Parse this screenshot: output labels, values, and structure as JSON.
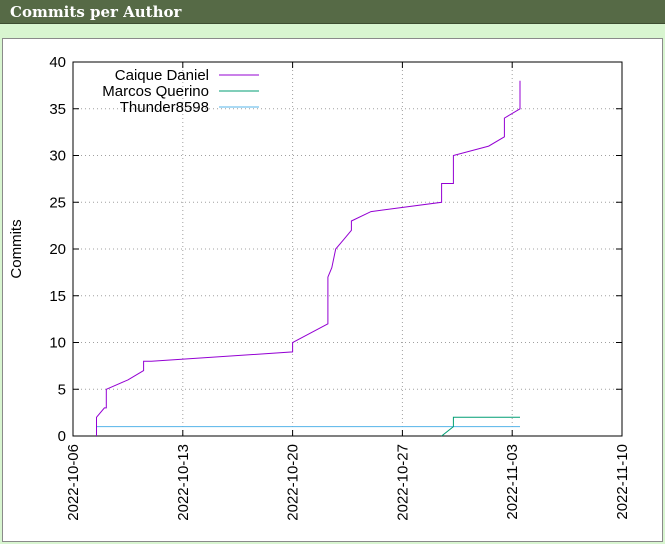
{
  "header": {
    "title": "Commits per Author"
  },
  "chart_data": {
    "type": "line",
    "xlabel": "",
    "ylabel": "Commits",
    "ylim": [
      0,
      40
    ],
    "yticks": [
      0,
      5,
      10,
      15,
      20,
      25,
      30,
      35,
      40
    ],
    "xlim": [
      "2022-10-06",
      "2022-11-10"
    ],
    "xticks": [
      "2022-10-06",
      "2022-10-13",
      "2022-10-20",
      "2022-10-27",
      "2022-11-03",
      "2022-11-10"
    ],
    "grid": "dotted-horizontal-and-vertical",
    "legend": "top-left",
    "series": [
      {
        "name": "Caique Daniel",
        "color": "#9400d3",
        "points": [
          [
            "2022-10-07 12:00",
            0
          ],
          [
            "2022-10-07 12:00",
            2
          ],
          [
            "2022-10-08 00:00",
            3
          ],
          [
            "2022-10-08 03:00",
            3
          ],
          [
            "2022-10-08 03:00",
            5
          ],
          [
            "2022-10-09 12:00",
            6
          ],
          [
            "2022-10-10 12:00",
            7
          ],
          [
            "2022-10-10 12:00",
            8
          ],
          [
            "2022-10-11 00:00",
            8
          ],
          [
            "2022-10-20 00:00",
            9
          ],
          [
            "2022-10-20 00:00",
            10
          ],
          [
            "2022-10-22 06:00",
            12
          ],
          [
            "2022-10-22 06:00",
            17
          ],
          [
            "2022-10-22 12:00",
            18
          ],
          [
            "2022-10-22 18:00",
            20
          ],
          [
            "2022-10-23 06:00",
            21
          ],
          [
            "2022-10-23 18:00",
            22
          ],
          [
            "2022-10-23 18:00",
            23
          ],
          [
            "2022-10-25 00:00",
            24
          ],
          [
            "2022-10-29 12:00",
            25
          ],
          [
            "2022-10-29 12:00",
            27
          ],
          [
            "2022-10-30 06:00",
            27
          ],
          [
            "2022-10-30 06:00",
            30
          ],
          [
            "2022-11-01 12:00",
            31
          ],
          [
            "2022-11-02 12:00",
            32
          ],
          [
            "2022-11-02 12:00",
            34
          ],
          [
            "2022-11-03 12:00",
            35
          ],
          [
            "2022-11-03 12:00",
            38
          ]
        ]
      },
      {
        "name": "Marcos Querino",
        "color": "#009e73",
        "points": [
          [
            "2022-10-29 12:00",
            0
          ],
          [
            "2022-10-30 06:00",
            1
          ],
          [
            "2022-10-30 06:00",
            2
          ],
          [
            "2022-11-03 12:00",
            2
          ]
        ]
      },
      {
        "name": "Thunder8598",
        "color": "#56b4e9",
        "points": [
          [
            "2022-10-07 12:00",
            0
          ],
          [
            "2022-10-07 12:00",
            1
          ],
          [
            "2022-11-03 12:00",
            1
          ]
        ]
      }
    ]
  }
}
